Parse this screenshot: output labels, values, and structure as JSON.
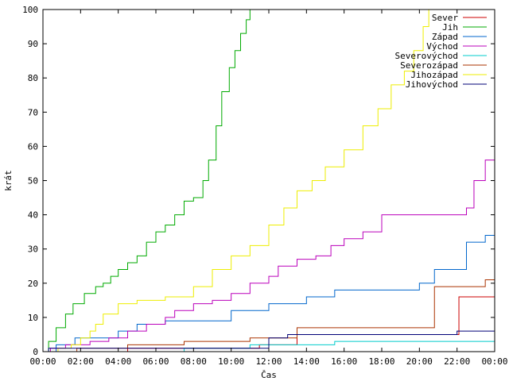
{
  "chart_data": {
    "type": "line",
    "title": "",
    "xlabel": "Čas",
    "ylabel": "krát",
    "x_unit": "hours",
    "xlim": [
      0,
      24
    ],
    "ylim": [
      0,
      100
    ],
    "x_ticks": [
      0,
      2,
      4,
      6,
      8,
      10,
      12,
      14,
      16,
      18,
      20,
      22,
      24
    ],
    "x_tick_labels": [
      "00:00",
      "02:00",
      "04:00",
      "06:00",
      "08:00",
      "10:00",
      "12:00",
      "14:00",
      "16:00",
      "18:00",
      "20:00",
      "22:00",
      "00:00"
    ],
    "y_ticks": [
      0,
      10,
      20,
      30,
      40,
      50,
      60,
      70,
      80,
      90,
      100
    ],
    "y_tick_labels": [
      "0",
      "10",
      "20",
      "30",
      "40",
      "50",
      "60",
      "70",
      "80",
      "90",
      "100"
    ],
    "grid": false,
    "legend_position": "top-right",
    "series": [
      {
        "name": "Sever",
        "color": "#cc0000",
        "step": true,
        "x": [
          0,
          4.5,
          11.5,
          13.5,
          21.8,
          22.1,
          24
        ],
        "y": [
          0,
          1,
          2,
          5,
          5,
          16,
          16
        ]
      },
      {
        "name": "Jih",
        "color": "#00aa00",
        "step": true,
        "x": [
          0,
          0.3,
          0.7,
          1.2,
          1.6,
          2.2,
          2.8,
          3.2,
          3.6,
          4.0,
          4.5,
          5.0,
          5.5,
          6.0,
          6.5,
          7.0,
          7.5,
          8.0,
          8.5,
          8.8,
          9.2,
          9.5,
          9.9,
          10.2,
          10.5,
          10.8,
          11.0
        ],
        "y": [
          0,
          3,
          7,
          11,
          14,
          17,
          19,
          20,
          22,
          24,
          26,
          28,
          32,
          35,
          37,
          40,
          44,
          45,
          50,
          56,
          66,
          76,
          83,
          88,
          93,
          97,
          100
        ]
      },
      {
        "name": "Západ",
        "color": "#0066cc",
        "step": true,
        "x": [
          0,
          0.7,
          1.7,
          4.0,
          5.0,
          6.5,
          10.0,
          12.0,
          14.0,
          15.5,
          20.0,
          20.8,
          22.5,
          23.5,
          24
        ],
        "y": [
          0,
          2,
          4,
          6,
          8,
          9,
          12,
          14,
          16,
          18,
          20,
          24,
          32,
          34,
          34
        ]
      },
      {
        "name": "Východ",
        "color": "#bb00bb",
        "step": true,
        "x": [
          0,
          0.4,
          1.2,
          2.5,
          3.5,
          4.5,
          5.5,
          6.5,
          7.0,
          8.0,
          9.0,
          10.0,
          11.0,
          12.0,
          12.5,
          13.5,
          14.5,
          15.3,
          16.0,
          17.0,
          18.0,
          22.5,
          22.9,
          23.5,
          24
        ],
        "y": [
          0,
          1,
          2,
          3,
          4,
          6,
          8,
          10,
          12,
          14,
          15,
          17,
          20,
          22,
          25,
          27,
          28,
          31,
          33,
          35,
          40,
          42,
          50,
          56,
          56
        ]
      },
      {
        "name": "Severovýchod",
        "color": "#00cccc",
        "step": true,
        "x": [
          0,
          7.5,
          11.0,
          15.5,
          24
        ],
        "y": [
          0,
          1,
          2,
          3,
          3
        ]
      },
      {
        "name": "Severozápad",
        "color": "#aa3300",
        "step": true,
        "x": [
          0,
          1.8,
          4.5,
          7.5,
          11.0,
          13.5,
          20.5,
          20.8,
          23.5,
          24
        ],
        "y": [
          0,
          1,
          2,
          3,
          4,
          7,
          7,
          19,
          21,
          21
        ]
      },
      {
        "name": "Jihozápad",
        "color": "#eeee00",
        "step": true,
        "x": [
          0,
          0.8,
          1.5,
          2.0,
          2.5,
          2.8,
          3.2,
          4.0,
          5.0,
          6.5,
          8.0,
          9.0,
          10.0,
          11.0,
          12.0,
          12.8,
          13.5,
          14.3,
          15.0,
          16.0,
          17.0,
          17.8,
          18.5,
          19.2,
          19.7,
          20.2,
          20.5
        ],
        "y": [
          0,
          1,
          2,
          4,
          6,
          8,
          11,
          14,
          15,
          16,
          19,
          24,
          28,
          31,
          37,
          42,
          47,
          50,
          54,
          59,
          66,
          71,
          78,
          82,
          88,
          95,
          100
        ]
      },
      {
        "name": "Jihovýchod",
        "color": "#000077",
        "step": true,
        "x": [
          0,
          0.3,
          1.5,
          12.0,
          13.0,
          22.0,
          24
        ],
        "y": [
          0,
          1,
          1,
          4,
          5,
          6,
          6
        ]
      }
    ]
  }
}
